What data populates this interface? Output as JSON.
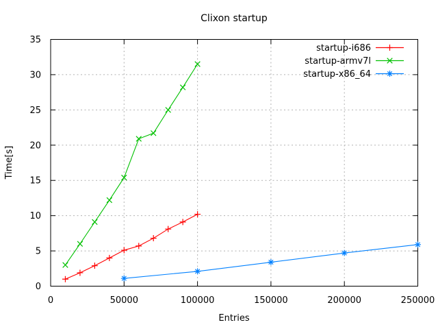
{
  "chart_data": {
    "type": "line",
    "title": "Clixon startup",
    "xlabel": "Entries",
    "ylabel": "Time[s]",
    "xlim": [
      0,
      250000
    ],
    "ylim": [
      0,
      35
    ],
    "x_ticks": [
      0,
      50000,
      100000,
      150000,
      200000,
      250000
    ],
    "x_tick_labels": [
      "0",
      "50000",
      "100000",
      "150000",
      "200000",
      "250000"
    ],
    "y_ticks": [
      0,
      5,
      10,
      15,
      20,
      25,
      30,
      35
    ],
    "y_tick_labels": [
      "0",
      "5",
      "10",
      "15",
      "20",
      "25",
      "30",
      "35"
    ],
    "grid": true,
    "legend_position": "top-right",
    "series": [
      {
        "name": "startup-i686",
        "color": "#ff0000",
        "marker": "plus",
        "x": [
          10000,
          20000,
          30000,
          40000,
          50000,
          60000,
          70000,
          80000,
          90000,
          100000
        ],
        "y": [
          1.0,
          1.9,
          2.9,
          4.0,
          5.1,
          5.7,
          6.8,
          8.1,
          9.1,
          10.2
        ]
      },
      {
        "name": "startup-armv7l",
        "color": "#00c000",
        "marker": "cross",
        "x": [
          10000,
          20000,
          30000,
          40000,
          50000,
          60000,
          70000,
          80000,
          90000,
          100000
        ],
        "y": [
          3.0,
          6.0,
          9.1,
          12.2,
          15.4,
          20.9,
          21.7,
          25.0,
          28.2,
          31.5
        ]
      },
      {
        "name": "startup-x86_64",
        "color": "#0080ff",
        "marker": "asterisk",
        "x": [
          50000,
          100000,
          150000,
          200000,
          250000
        ],
        "y": [
          1.1,
          2.1,
          3.4,
          4.7,
          5.9
        ]
      }
    ],
    "colors": {
      "background": "#ffffff",
      "border": "#000000",
      "grid": "#b0b0b0",
      "text": "#000000"
    }
  }
}
